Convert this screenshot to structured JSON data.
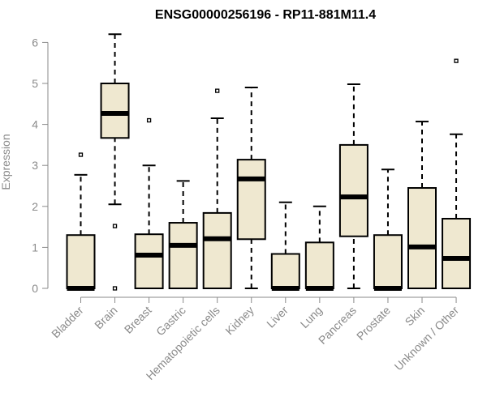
{
  "chart_data": {
    "type": "boxplot",
    "title": "ENSG00000256196 - RP11-881M11.4",
    "ylabel": "Expression",
    "xlabel": "",
    "ylim": [
      0,
      6.2
    ],
    "yticks": [
      0,
      1,
      2,
      3,
      4,
      5,
      6
    ],
    "grid": false,
    "box_color": "#efe8d0",
    "categories": [
      "Bladder",
      "Brain",
      "Breast",
      "Gastric",
      "Hematopoietic cells",
      "Kidney",
      "Liver",
      "Lung",
      "Pancreas",
      "Prostate",
      "Skin",
      "Unknown / Other"
    ],
    "boxes": [
      {
        "min": 0,
        "q1": 0,
        "median": 0,
        "q3": 1.3,
        "max": 2.77,
        "outliers": [
          3.26
        ]
      },
      {
        "min": 2.05,
        "q1": 3.67,
        "median": 4.27,
        "q3": 5.0,
        "max": 6.2,
        "outliers": [
          1.52,
          0.0
        ]
      },
      {
        "min": 0,
        "q1": 0,
        "median": 0.81,
        "q3": 1.32,
        "max": 3.0,
        "outliers": [
          4.1
        ]
      },
      {
        "min": 0,
        "q1": 0,
        "median": 1.05,
        "q3": 1.6,
        "max": 2.62,
        "outliers": []
      },
      {
        "min": 0,
        "q1": 0,
        "median": 1.21,
        "q3": 1.84,
        "max": 4.15,
        "outliers": [
          4.82
        ]
      },
      {
        "min": 0,
        "q1": 1.2,
        "median": 2.67,
        "q3": 3.14,
        "max": 4.9,
        "outliers": []
      },
      {
        "min": 0,
        "q1": 0,
        "median": 0,
        "q3": 0.84,
        "max": 2.1,
        "outliers": []
      },
      {
        "min": 0,
        "q1": 0,
        "median": 0,
        "q3": 1.12,
        "max": 2.0,
        "outliers": []
      },
      {
        "min": 0,
        "q1": 1.27,
        "median": 2.23,
        "q3": 3.5,
        "max": 4.98,
        "outliers": []
      },
      {
        "min": 0,
        "q1": 0,
        "median": 0,
        "q3": 1.3,
        "max": 2.9,
        "outliers": []
      },
      {
        "min": 0,
        "q1": 0,
        "median": 1.01,
        "q3": 2.45,
        "max": 4.07,
        "outliers": []
      },
      {
        "min": 0,
        "q1": 0,
        "median": 0.73,
        "q3": 1.7,
        "max": 3.76,
        "outliers": [
          5.55
        ]
      }
    ]
  }
}
